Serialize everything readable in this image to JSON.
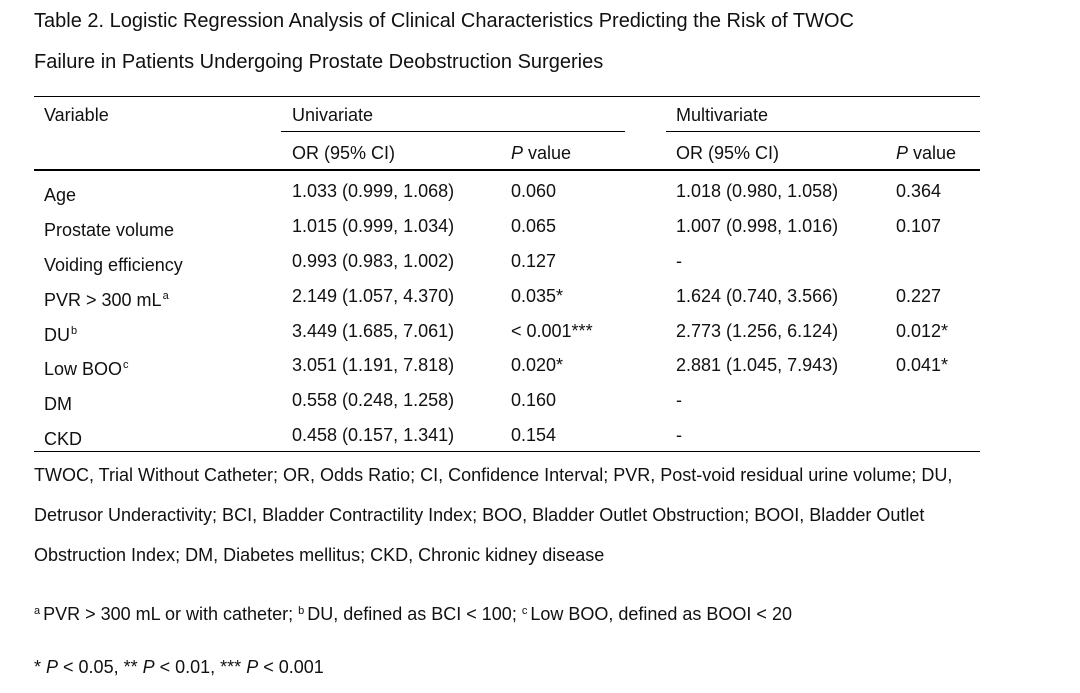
{
  "table": {
    "title_line1": "Table 2. Logistic Regression Analysis of Clinical Characteristics Predicting the Risk of TWOC",
    "title_line2": "Failure in Patients Undergoing Prostate Deobstruction Surgeries",
    "header": {
      "variable": "Variable",
      "univariate": "Univariate",
      "multivariate": "Multivariate",
      "or_ci": "OR (95% CI)",
      "p_italic": "P",
      "p_rest": " value"
    },
    "rows": [
      {
        "variable": "Age",
        "sup": "",
        "uni_or": "1.033 (0.999, 1.068)",
        "uni_p": "0.060",
        "multi_or": "1.018 (0.980, 1.058)",
        "multi_p": "0.364"
      },
      {
        "variable": "Prostate volume",
        "sup": "",
        "uni_or": "1.015 (0.999, 1.034)",
        "uni_p": "0.065",
        "multi_or": "1.007 (0.998, 1.016)",
        "multi_p": "0.107"
      },
      {
        "variable": "Voiding efficiency",
        "sup": "",
        "uni_or": "0.993 (0.983, 1.002)",
        "uni_p": "0.127",
        "multi_or": "-",
        "multi_p": ""
      },
      {
        "variable": "PVR > 300 mL",
        "sup": "a",
        "uni_or": "2.149 (1.057, 4.370)",
        "uni_p": "0.035*",
        "multi_or": "1.624 (0.740, 3.566)",
        "multi_p": "0.227"
      },
      {
        "variable": "DU",
        "sup": "b",
        "uni_or": "3.449 (1.685, 7.061)",
        "uni_p": "< 0.001***",
        "multi_or": "2.773 (1.256, 6.124)",
        "multi_p": "0.012*"
      },
      {
        "variable": "Low BOO",
        "sup": "c",
        "uni_or": "3.051 (1.191, 7.818)",
        "uni_p": "0.020*",
        "multi_or": "2.881 (1.045, 7.943)",
        "multi_p": "0.041*"
      },
      {
        "variable": "DM",
        "sup": "",
        "uni_or": "0.558 (0.248, 1.258)",
        "uni_p": "0.160",
        "multi_or": "-",
        "multi_p": ""
      },
      {
        "variable": "CKD",
        "sup": "",
        "uni_or": "0.458 (0.157, 1.341)",
        "uni_p": "0.154",
        "multi_or": "-",
        "multi_p": ""
      }
    ]
  },
  "footnotes": {
    "abbrev_line1": "TWOC, Trial Without Catheter; OR, Odds Ratio; CI, Confidence Interval; PVR, Post-void residual urine volume; DU,",
    "abbrev_line2": "Detrusor Underactivity; BCI, Bladder Contractility Index; BOO, Bladder Outlet Obstruction; BOOI, Bladder Outlet",
    "abbrev_line3": "Obstruction Index; DM, Diabetes mellitus; CKD, Chronic kidney disease",
    "def_a_sup": "a",
    "def_a": "PVR > 300 mL or with catheter; ",
    "def_b_sup": "b",
    "def_b": "DU, defined as BCI < 100; ",
    "def_c_sup": "c",
    "def_c": "Low BOO, defined as BOOI < 20",
    "sig_1_stars": "* ",
    "sig_1_rest": " < 0.05, ** ",
    "sig_2_rest": " < 0.01, *** ",
    "sig_3_rest": " < 0.001",
    "sig_p": "P"
  }
}
